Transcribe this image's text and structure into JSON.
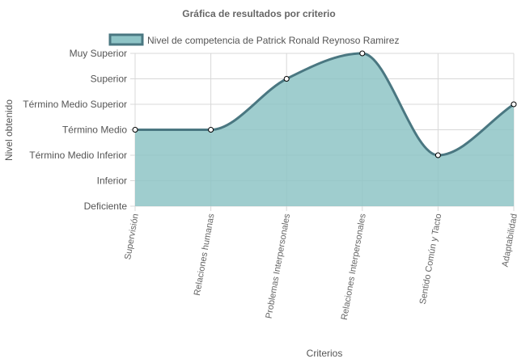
{
  "chart_data": {
    "type": "area",
    "title": "Gráfica de resultados por criterio",
    "xlabel": "Criterios",
    "ylabel": "Nivel obtenido",
    "categories": [
      "Supervisión",
      "Relaciones humanas",
      "Problemas Interpersonales",
      "Relaciones Interpersonales",
      "Sentido Común y Tacto",
      "Adaptabilidad"
    ],
    "y_levels": [
      "Deficiente",
      "Inferior",
      "Término Medio Inferior",
      "Término Medio",
      "Término Medio Superior",
      "Superior",
      "Muy Superior"
    ],
    "ylim": [
      0,
      6
    ],
    "series": [
      {
        "name": "Nivel de competencia de Patrick Ronald Reynoso Ramirez",
        "values": [
          3,
          3,
          5,
          6,
          2,
          4
        ]
      }
    ],
    "legend_position": "top",
    "grid": true,
    "colors": {
      "fill": "#8ec4c6",
      "line": "#4a7781",
      "grid": "#d8d8d8",
      "point": "#ffffff"
    }
  }
}
